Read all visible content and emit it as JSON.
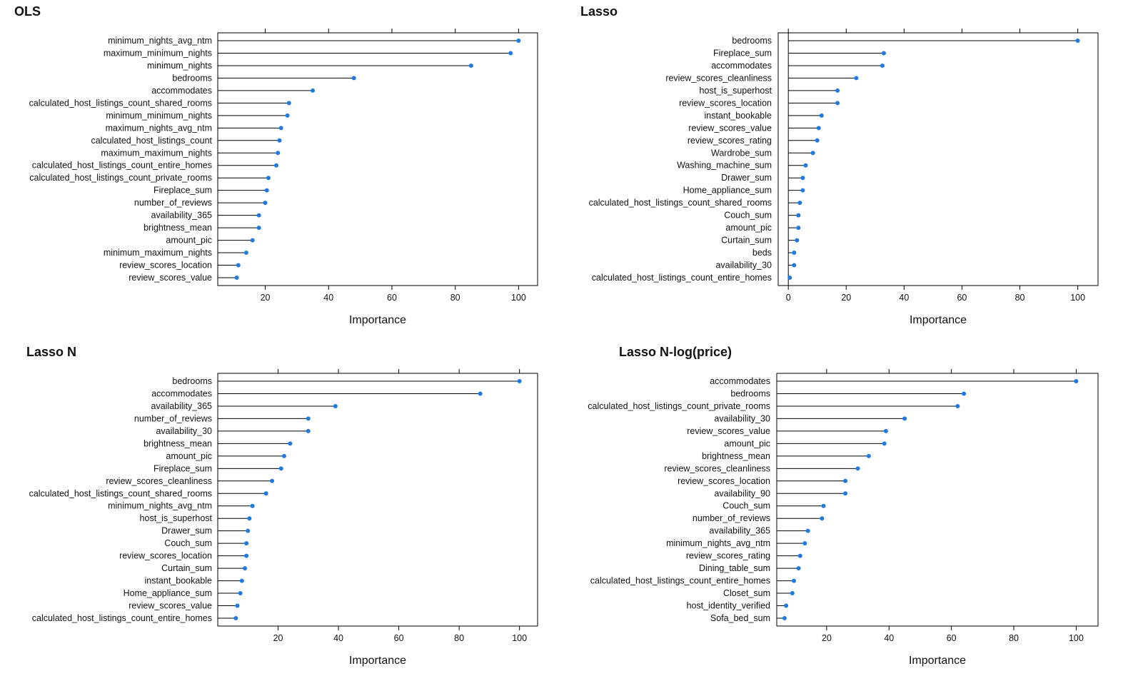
{
  "colors": {
    "marker": "#1E7BE5",
    "line": "#000000",
    "frame": "#000000"
  },
  "chart_data": [
    {
      "type": "lollipop",
      "title": "OLS",
      "xlabel": "Importance",
      "xlim": [
        5,
        106
      ],
      "ticks": [
        20,
        40,
        60,
        80,
        100
      ],
      "categories": [
        "minimum_nights_avg_ntm",
        "maximum_minimum_nights",
        "minimum_nights",
        "bedrooms",
        "accommodates",
        "calculated_host_listings_count_shared_rooms",
        "minimum_minimum_nights",
        "maximum_nights_avg_ntm",
        "calculated_host_listings_count",
        "maximum_maximum_nights",
        "calculated_host_listings_count_entire_homes",
        "calculated_host_listings_count_private_rooms",
        "Fireplace_sum",
        "number_of_reviews",
        "availability_365",
        "brightness_mean",
        "amount_pic",
        "minimum_maximum_nights",
        "review_scores_location",
        "review_scores_value"
      ],
      "values": [
        100,
        97.5,
        85,
        48,
        35,
        27.5,
        27,
        25,
        24.5,
        24,
        23.5,
        21,
        20.5,
        20,
        18,
        18,
        16,
        14,
        11.5,
        11
      ]
    },
    {
      "type": "lollipop",
      "title": "Lasso",
      "xlabel": "Importance",
      "xlim": [
        -3.5,
        107
      ],
      "ticks": [
        0,
        20,
        40,
        60,
        80,
        100
      ],
      "categories": [
        "bedrooms",
        "Fireplace_sum",
        "accommodates",
        "review_scores_cleanliness",
        "host_is_superhost",
        "review_scores_location",
        "instant_bookable",
        "review_scores_value",
        "review_scores_rating",
        "Wardrobe_sum",
        "Washing_machine_sum",
        "Drawer_sum",
        "Home_appliance_sum",
        "calculated_host_listings_count_shared_rooms",
        "Couch_sum",
        "amount_pic",
        "Curtain_sum",
        "beds",
        "availability_30",
        "calculated_host_listings_count_entire_homes"
      ],
      "values": [
        100,
        33,
        32.5,
        23.5,
        17,
        17,
        11.5,
        10.5,
        10,
        8.5,
        6,
        5,
        5,
        4,
        3.5,
        3.5,
        3,
        2,
        2,
        0.5
      ]
    },
    {
      "type": "lollipop",
      "title": "Lasso N",
      "xlabel": "Importance",
      "xlim": [
        0,
        106
      ],
      "ticks": [
        20,
        40,
        60,
        80,
        100
      ],
      "categories": [
        "bedrooms",
        "accommodates",
        "availability_365",
        "number_of_reviews",
        "availability_30",
        "brightness_mean",
        "amount_pic",
        "Fireplace_sum",
        "review_scores_cleanliness",
        "calculated_host_listings_count_shared_rooms",
        "minimum_nights_avg_ntm",
        "host_is_superhost",
        "Drawer_sum",
        "Couch_sum",
        "review_scores_location",
        "Curtain_sum",
        "instant_bookable",
        "Home_appliance_sum",
        "review_scores_value",
        "calculated_host_listings_count_entire_homes"
      ],
      "values": [
        100,
        87,
        39,
        30,
        30,
        24,
        22,
        21,
        18,
        16,
        11.5,
        10.5,
        10,
        9.5,
        9.5,
        9,
        8,
        7.5,
        6.5,
        6
      ]
    },
    {
      "type": "lollipop",
      "title": "Lasso N-log(price)",
      "xlabel": "Importance",
      "xlim": [
        4,
        107
      ],
      "ticks": [
        20,
        40,
        60,
        80,
        100
      ],
      "categories": [
        "accommodates",
        "bedrooms",
        "calculated_host_listings_count_private_rooms",
        "availability_30",
        "review_scores_value",
        "amount_pic",
        "brightness_mean",
        "review_scores_cleanliness",
        "review_scores_location",
        "availability_90",
        "Couch_sum",
        "number_of_reviews",
        "availability_365",
        "minimum_nights_avg_ntm",
        "review_scores_rating",
        "Dining_table_sum",
        "calculated_host_listings_count_entire_homes",
        "Closet_sum",
        "host_identity_verified",
        "Sofa_bed_sum"
      ],
      "values": [
        100,
        64,
        62,
        45,
        39,
        38.5,
        33.5,
        30,
        26,
        26,
        19,
        18.5,
        14,
        13,
        11.5,
        11,
        9.5,
        9,
        7,
        6.5
      ]
    }
  ]
}
